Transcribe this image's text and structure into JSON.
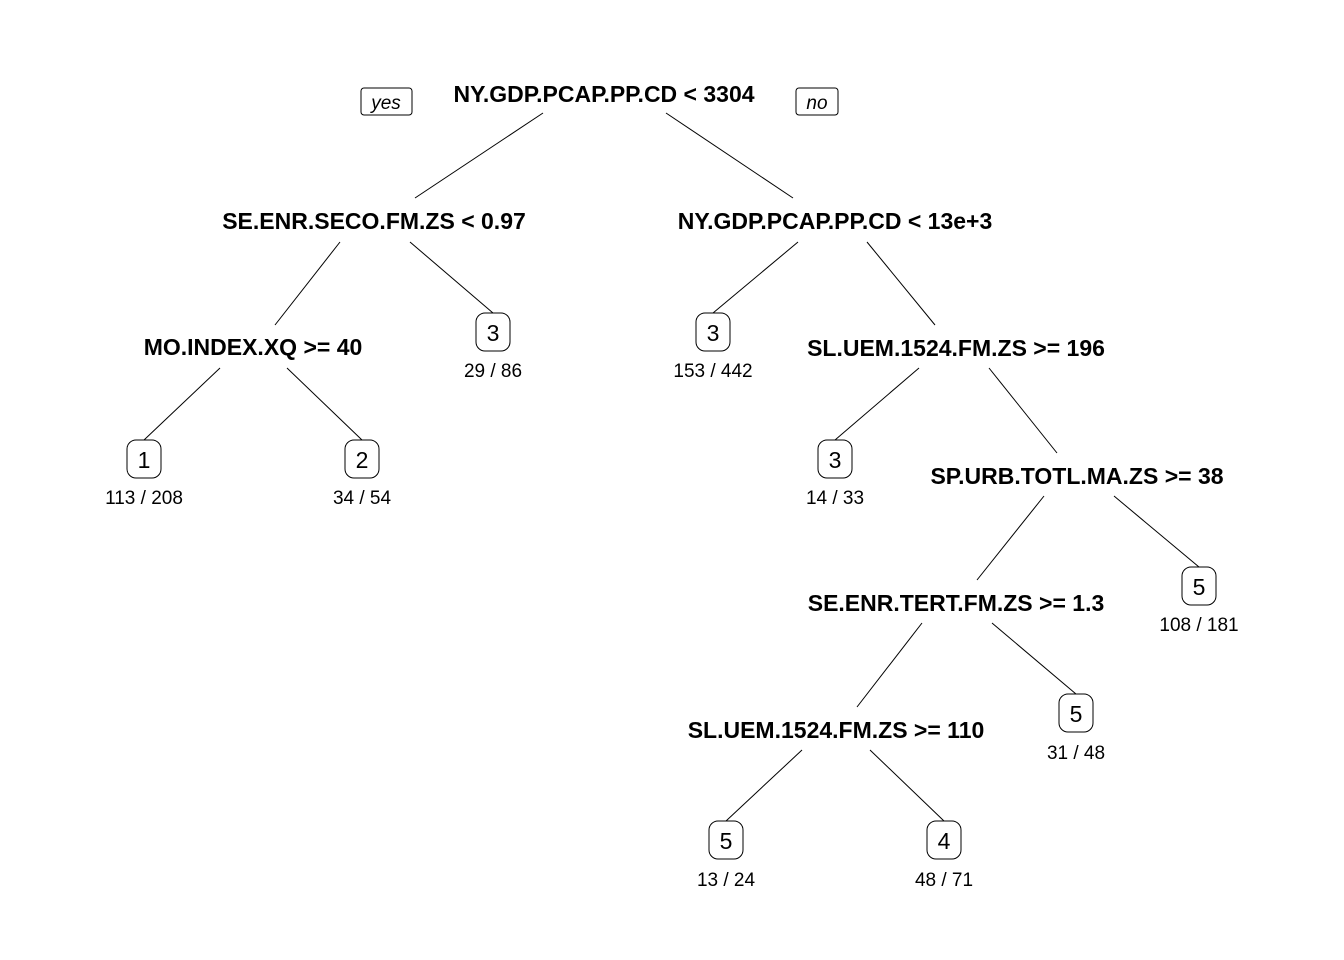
{
  "tags": {
    "yes": "yes",
    "no": "no"
  },
  "splits": [
    "NY.GDP.PCAP.PP.CD < 3304",
    "SE.ENR.SECO.FM.ZS < 0.97",
    "NY.GDP.PCAP.PP.CD < 13e+3",
    "MO.INDEX.XQ >= 40",
    "SL.UEM.1524.FM.ZS >= 196",
    "SP.URB.TOTL.MA.ZS >= 38",
    "SE.ENR.TERT.FM.ZS >= 1.3",
    "SL.UEM.1524.FM.ZS >= 110"
  ],
  "leaves": [
    {
      "class": "1",
      "count": "113 / 208"
    },
    {
      "class": "2",
      "count": "34 / 54"
    },
    {
      "class": "3",
      "count": "29 / 86"
    },
    {
      "class": "3",
      "count": "153 / 442"
    },
    {
      "class": "3",
      "count": "14 / 33"
    },
    {
      "class": "5",
      "count": "108 / 181"
    },
    {
      "class": "5",
      "count": "31 / 48"
    },
    {
      "class": "5",
      "count": "13 / 24"
    },
    {
      "class": "4",
      "count": "48 / 71"
    }
  ]
}
